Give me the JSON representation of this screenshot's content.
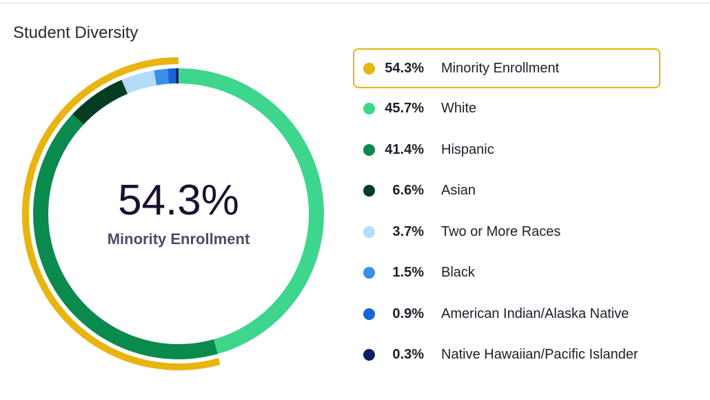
{
  "title": "Student Diversity",
  "center": {
    "value": "54.3%",
    "label": "Minority Enrollment"
  },
  "chart_data": {
    "type": "pie",
    "title": "Student Diversity",
    "highlight": {
      "name": "Minority Enrollment",
      "value": 54.3,
      "label": "54.3%",
      "color": "#e8b40f"
    },
    "slices": [
      {
        "name": "White",
        "value": 45.7,
        "label": "45.7%",
        "color": "#3dd68c"
      },
      {
        "name": "Hispanic",
        "value": 41.4,
        "label": "41.4%",
        "color": "#0a8a4c"
      },
      {
        "name": "Asian",
        "value": 6.6,
        "label": "6.6%",
        "color": "#053d22"
      },
      {
        "name": "Two or More Races",
        "value": 3.7,
        "label": "3.7%",
        "color": "#b5dbfb"
      },
      {
        "name": "Black",
        "value": 1.5,
        "label": "1.5%",
        "color": "#3a8fe8"
      },
      {
        "name": "American Indian/Alaska Native",
        "value": 0.9,
        "label": "0.9%",
        "color": "#1565d8"
      },
      {
        "name": "Native Hawaiian/Pacific Islander",
        "value": 0.3,
        "label": "0.3%",
        "color": "#0a1f66"
      }
    ]
  }
}
